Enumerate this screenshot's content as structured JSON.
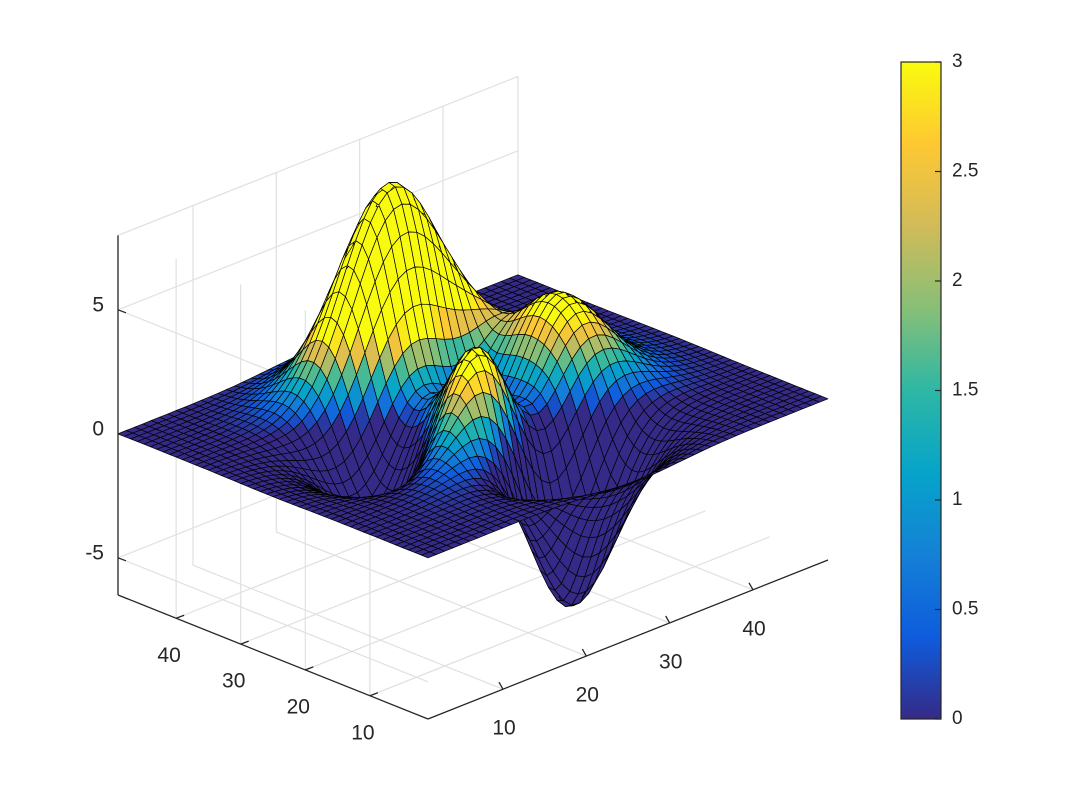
{
  "chart_data": {
    "type": "surface3d",
    "function": "peaks",
    "grid_size": 49,
    "title": "",
    "xlabel": "",
    "ylabel": "",
    "zlabel": "",
    "xlim": [
      1,
      49
    ],
    "ylim": [
      1,
      49
    ],
    "zlim": [
      -6.5,
      8
    ],
    "x_ticks": [
      10,
      20,
      30,
      40
    ],
    "y_ticks": [
      10,
      20,
      30,
      40
    ],
    "z_ticks": [
      -5,
      0,
      5
    ],
    "x_tick_labels": [
      "10",
      "20",
      "30",
      "40"
    ],
    "y_tick_labels": [
      "10",
      "20",
      "30",
      "40"
    ],
    "z_tick_labels": [
      "-5",
      "0",
      "5"
    ],
    "colormap": "parula",
    "clim": [
      0,
      3
    ],
    "colorbar": {
      "ticks": [
        0,
        0.5,
        1,
        1.5,
        2,
        2.5,
        3
      ],
      "tick_labels": [
        "0",
        "0.5",
        "1",
        "1.5",
        "2",
        "2.5",
        "3"
      ],
      "placement": "right"
    },
    "grid": true,
    "surface_extrema": {
      "max_z": 8.1,
      "min_z": -6.55
    }
  },
  "colors": {
    "axis": "#262626",
    "grid": "#e0e0e0",
    "edge": "#000000",
    "parula_stops": [
      "#352a87",
      "#0f5cdd",
      "#1481d6",
      "#06a4ca",
      "#2eb7a4",
      "#87bf77",
      "#d1bb59",
      "#fec832",
      "#f9fb0e"
    ]
  }
}
